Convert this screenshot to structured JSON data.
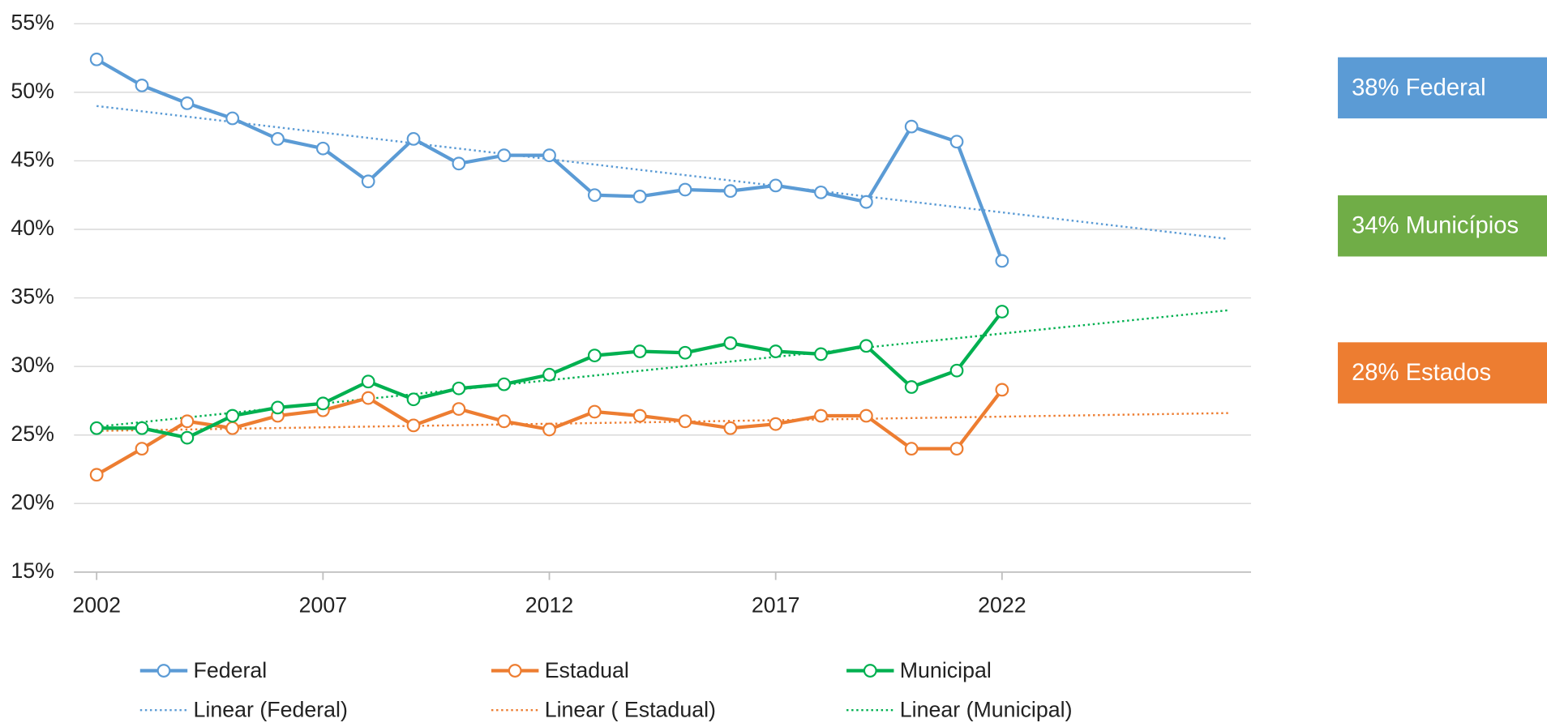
{
  "chart_data": {
    "type": "line",
    "x": [
      2002,
      2003,
      2004,
      2005,
      2006,
      2007,
      2008,
      2009,
      2010,
      2011,
      2012,
      2013,
      2014,
      2015,
      2016,
      2017,
      2018,
      2019,
      2020,
      2021,
      2022
    ],
    "series": [
      {
        "name": "Federal",
        "color": "#5b9bd5",
        "values": [
          52.4,
          50.5,
          49.2,
          48.1,
          46.6,
          45.9,
          43.5,
          46.6,
          44.8,
          45.4,
          45.4,
          42.5,
          42.4,
          42.9,
          42.8,
          43.2,
          42.7,
          42.0,
          47.5,
          46.4,
          37.7
        ]
      },
      {
        "name": "Estadual",
        "color": "#ed7d31",
        "values": [
          22.1,
          24.0,
          26.0,
          25.5,
          26.4,
          26.8,
          27.7,
          25.7,
          26.9,
          26.0,
          25.4,
          26.7,
          26.4,
          26.0,
          25.5,
          25.8,
          26.4,
          26.4,
          24.0,
          24.0,
          28.3
        ]
      },
      {
        "name": "Municipal",
        "color": "#00b050",
        "values": [
          25.5,
          25.5,
          24.8,
          26.4,
          27.0,
          27.3,
          28.9,
          27.6,
          28.4,
          28.7,
          29.4,
          30.8,
          31.1,
          31.0,
          31.7,
          31.1,
          30.9,
          31.5,
          28.5,
          29.7,
          34.0
        ]
      }
    ],
    "trendlines": [
      {
        "name": "Linear (Federal)",
        "color": "#5b9bd5",
        "x": [
          2002,
          2027
        ],
        "values": [
          49.0,
          39.3
        ]
      },
      {
        "name": "Linear ( Estadual)",
        "color": "#ed7d31",
        "x": [
          2002,
          2027
        ],
        "values": [
          25.3,
          26.6
        ]
      },
      {
        "name": "Linear (Municipal)",
        "color": "#00b050",
        "x": [
          2002,
          2027
        ],
        "values": [
          25.6,
          34.1
        ]
      }
    ],
    "xlim": [
      2001.5,
      2027.5
    ],
    "xticks": [
      2002,
      2007,
      2012,
      2017,
      2022
    ],
    "ylim": [
      15,
      55
    ],
    "yticks": [
      {
        "value": 15,
        "label": "15%"
      },
      {
        "value": 20,
        "label": "20%"
      },
      {
        "value": 25,
        "label": "25%"
      },
      {
        "value": 30,
        "label": "30%"
      },
      {
        "value": 35,
        "label": "35%"
      },
      {
        "value": 40,
        "label": "40%"
      },
      {
        "value": 45,
        "label": "45%"
      },
      {
        "value": 50,
        "label": "50%"
      },
      {
        "value": 55,
        "label": "55%"
      }
    ],
    "grid": true,
    "legend": "bottom",
    "annotations": [
      {
        "text": "38% Federal",
        "color": "#5b9bd5"
      },
      {
        "text": "34% Municípios",
        "color": "#70ad47"
      },
      {
        "text": "28% Estados",
        "color": "#ed7d31"
      }
    ]
  }
}
